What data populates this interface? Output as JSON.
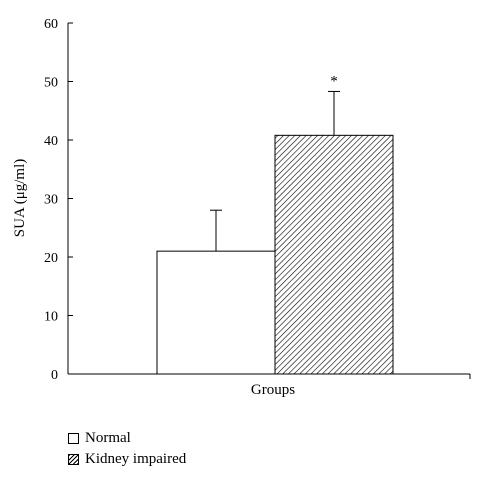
{
  "chart_data": {
    "type": "bar",
    "xlabel": "Groups",
    "ylabel": "SUA (μg/ml)",
    "ylim": [
      0,
      60
    ],
    "yticks": [
      0,
      10,
      20,
      30,
      40,
      50,
      60
    ],
    "series": [
      {
        "name": "Normal",
        "value": 21,
        "error": 7,
        "fill": "plain",
        "annotation": ""
      },
      {
        "name": "Kidney impaired",
        "value": 40.8,
        "error": 7.5,
        "fill": "hatched",
        "annotation": "*"
      }
    ],
    "legend_position": "bottom-left",
    "grid": false
  }
}
